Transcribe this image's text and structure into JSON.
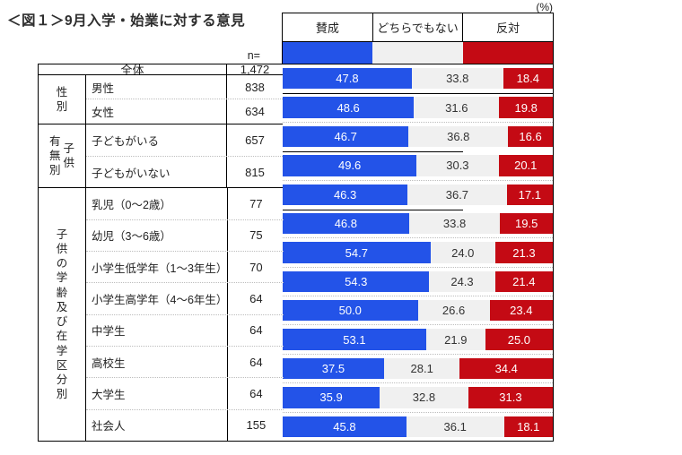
{
  "title": "＜図１＞9月入学・始業に対する意見",
  "unit_label": "(%)",
  "n_label": "n=",
  "legend": [
    {
      "key": "agree",
      "label": "賛成",
      "color": "#2353e8",
      "text_color": "#ffffff"
    },
    {
      "key": "neutral",
      "label": "どちらでもない",
      "color": "#f0f0f0",
      "text_color": "#333333"
    },
    {
      "key": "oppose",
      "label": "反対",
      "color": "#c40a14",
      "text_color": "#ffffff"
    }
  ],
  "chart_data": {
    "type": "bar",
    "stacked": true,
    "orientation": "horizontal",
    "value_unit": "%",
    "xlim": [
      0,
      100
    ],
    "series": [
      "賛成",
      "どちらでもない",
      "反対"
    ],
    "groups": [
      {
        "label": "",
        "label_columns": [],
        "rows": [
          {
            "label": "全体",
            "n": "1,472",
            "values": [
              47.8,
              33.8,
              18.4
            ],
            "merged": true
          }
        ]
      },
      {
        "label": "性別",
        "label_columns": [
          "性別"
        ],
        "rows": [
          {
            "label": "男性",
            "n": "838",
            "values": [
              48.6,
              31.6,
              19.8
            ]
          },
          {
            "label": "女性",
            "n": "634",
            "values": [
              46.7,
              36.8,
              16.6
            ]
          }
        ]
      },
      {
        "label": "子供有無別",
        "label_columns": [
          "有無別",
          "子供"
        ],
        "rows": [
          {
            "label": "子どもがいる",
            "n": "657",
            "values": [
              49.6,
              30.3,
              20.1
            ]
          },
          {
            "label": "子どもがいない",
            "n": "815",
            "values": [
              46.3,
              36.7,
              17.1
            ]
          }
        ]
      },
      {
        "label": "子供の学齢及び在学区分別",
        "label_columns": [
          "子供の学齢及び在学区分別"
        ],
        "rows": [
          {
            "label": "乳児（0～2歳）",
            "n": "77",
            "values": [
              46.8,
              33.8,
              19.5
            ]
          },
          {
            "label": "幼児（3～6歳）",
            "n": "75",
            "values": [
              54.7,
              24.0,
              21.3
            ]
          },
          {
            "label": "小学生低学年（1～3年生）",
            "n": "70",
            "values": [
              54.3,
              24.3,
              21.4
            ]
          },
          {
            "label": "小学生高学年（4～6年生）",
            "n": "64",
            "values": [
              50.0,
              26.6,
              23.4
            ]
          },
          {
            "label": "中学生",
            "n": "64",
            "values": [
              53.1,
              21.9,
              25.0
            ]
          },
          {
            "label": "高校生",
            "n": "64",
            "values": [
              37.5,
              28.1,
              34.4
            ]
          },
          {
            "label": "大学生",
            "n": "64",
            "values": [
              35.9,
              32.8,
              31.3
            ]
          },
          {
            "label": "社会人",
            "n": "155",
            "values": [
              45.8,
              36.1,
              18.1
            ]
          }
        ]
      }
    ]
  }
}
